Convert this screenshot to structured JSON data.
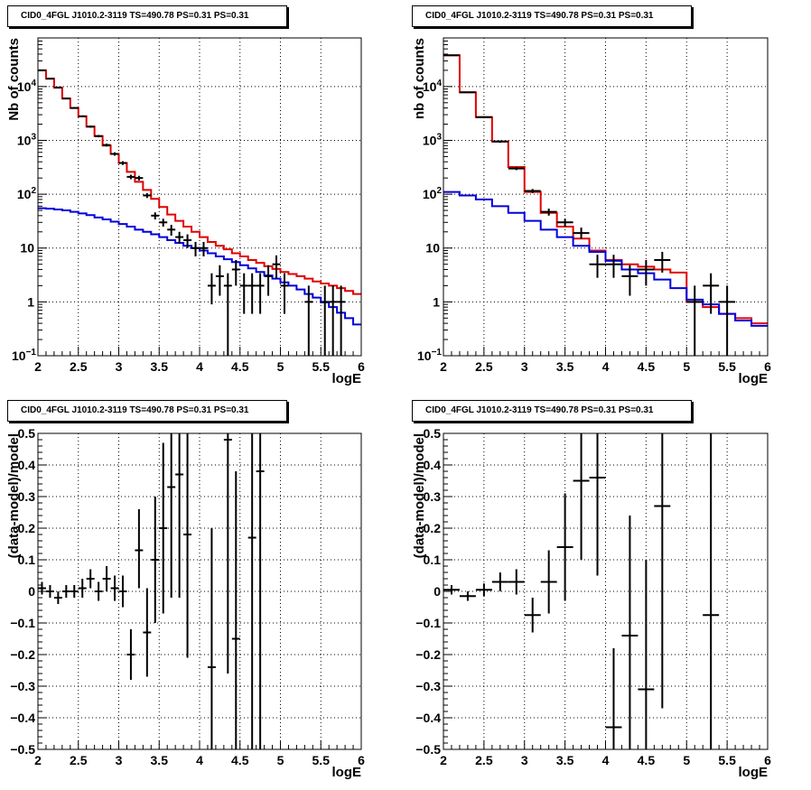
{
  "chart_data": [
    {
      "type": "line",
      "title": "CID0_4FGL J1010.2-3119 TS=490.78 PS=0.31 PS=0.31",
      "xlabel": "logE",
      "ylabel": "Nb of counts",
      "xlim": [
        2,
        6
      ],
      "ylim": [
        0.1,
        80000
      ],
      "yscale": "log",
      "grid": true,
      "xticks": [
        "2",
        "2.5",
        "3",
        "3.5",
        "4",
        "4.5",
        "5",
        "5.5",
        "6"
      ],
      "yticks": [
        {
          "v": 0.1,
          "base": "10",
          "exp": "−1"
        },
        {
          "v": 1,
          "base": "1",
          "exp": ""
        },
        {
          "v": 10,
          "base": "10",
          "exp": ""
        },
        {
          "v": 100,
          "base": "10",
          "exp": "2"
        },
        {
          "v": 1000,
          "base": "10",
          "exp": "3"
        },
        {
          "v": 10000,
          "base": "10",
          "exp": "4"
        }
      ],
      "series": [
        {
          "color": "#e00000",
          "kind": "step",
          "bins": 40,
          "values": [
            20000,
            14000,
            9500,
            6000,
            4000,
            2800,
            1800,
            1200,
            800,
            560,
            380,
            260,
            170,
            120,
            82,
            58,
            42,
            32,
            25,
            20,
            16,
            13,
            11,
            9.5,
            8,
            7,
            6,
            5.3,
            4.6,
            4.1,
            3.6,
            3.3,
            3,
            2.7,
            2.4,
            2.2,
            2,
            1.8,
            1.6,
            1.4
          ]
        },
        {
          "color": "#0000dd",
          "kind": "step",
          "bins": 40,
          "values": [
            55,
            54,
            52,
            50,
            47,
            44,
            41,
            37,
            34,
            31,
            28,
            25,
            22,
            20,
            18,
            16,
            14,
            12.5,
            11,
            10,
            9,
            8,
            7,
            6.2,
            5.5,
            4.8,
            4.2,
            3.6,
            3.1,
            2.7,
            2.3,
            2,
            1.7,
            1.4,
            1.2,
            0.98,
            0.8,
            0.63,
            0.5,
            0.38
          ],
          "tail": {
            "x": [
              5.65,
              5.75,
              5.85,
              5.95,
              6.0
            ],
            "y": [
              0.3,
              0.25,
              0.2,
              0.17,
              0.15
            ]
          }
        },
        {
          "color": "#000000",
          "kind": "errorbar",
          "xhalf": 0.05,
          "points": [
            {
              "x": 2.05,
              "y": 20000,
              "lo": 19700,
              "hi": 20300
            },
            {
              "x": 2.15,
              "y": 14000,
              "lo": 13750,
              "hi": 14250
            },
            {
              "x": 2.25,
              "y": 9600,
              "lo": 9400,
              "hi": 9800
            },
            {
              "x": 2.35,
              "y": 6000,
              "lo": 5850,
              "hi": 6150
            },
            {
              "x": 2.45,
              "y": 4000,
              "lo": 3880,
              "hi": 4120
            },
            {
              "x": 2.55,
              "y": 2800,
              "lo": 2700,
              "hi": 2900
            },
            {
              "x": 2.65,
              "y": 1800,
              "lo": 1720,
              "hi": 1880
            },
            {
              "x": 2.75,
              "y": 1200,
              "lo": 1140,
              "hi": 1260
            },
            {
              "x": 2.85,
              "y": 820,
              "lo": 770,
              "hi": 870
            },
            {
              "x": 2.95,
              "y": 560,
              "lo": 520,
              "hi": 600
            },
            {
              "x": 3.05,
              "y": 380,
              "lo": 350,
              "hi": 410
            },
            {
              "x": 3.15,
              "y": 210,
              "lo": 190,
              "hi": 230
            },
            {
              "x": 3.25,
              "y": 200,
              "lo": 180,
              "hi": 220
            },
            {
              "x": 3.35,
              "y": 95,
              "lo": 85,
              "hi": 105
            },
            {
              "x": 3.45,
              "y": 40,
              "lo": 34,
              "hi": 46
            },
            {
              "x": 3.55,
              "y": 30,
              "lo": 25,
              "hi": 35
            },
            {
              "x": 3.65,
              "y": 22,
              "lo": 17,
              "hi": 27
            },
            {
              "x": 3.75,
              "y": 16,
              "lo": 12,
              "hi": 20
            },
            {
              "x": 3.85,
              "y": 14,
              "lo": 10,
              "hi": 18
            },
            {
              "x": 3.95,
              "y": 10,
              "lo": 7,
              "hi": 13
            },
            {
              "x": 4.05,
              "y": 10,
              "lo": 7,
              "hi": 13
            },
            {
              "x": 4.15,
              "y": 2,
              "lo": 0.9,
              "hi": 3.4
            },
            {
              "x": 4.25,
              "y": 3,
              "lo": 1.3,
              "hi": 4.8
            },
            {
              "x": 4.35,
              "y": 2,
              "lo": 0.1,
              "hi": 3.4
            },
            {
              "x": 4.45,
              "y": 4,
              "lo": 2,
              "hi": 6
            },
            {
              "x": 4.55,
              "y": 2,
              "lo": 0.6,
              "hi": 3.4
            },
            {
              "x": 4.65,
              "y": 2,
              "lo": 0.6,
              "hi": 3.4
            },
            {
              "x": 4.75,
              "y": 2,
              "lo": 0.6,
              "hi": 3.4
            },
            {
              "x": 4.85,
              "y": 3,
              "lo": 1.3,
              "hi": 4.8
            },
            {
              "x": 4.95,
              "y": 5,
              "lo": 2.7,
              "hi": 7.3
            },
            {
              "x": 5.05,
              "y": 2,
              "lo": 0.6,
              "hi": 3.4
            },
            {
              "x": 5.35,
              "y": 1,
              "lo": 0.1,
              "hi": 2
            },
            {
              "x": 5.55,
              "y": 1,
              "lo": 0.1,
              "hi": 2
            },
            {
              "x": 5.65,
              "y": 1,
              "lo": 0.1,
              "hi": 2
            },
            {
              "x": 5.75,
              "y": 1,
              "lo": 0.1,
              "hi": 2
            }
          ]
        }
      ]
    },
    {
      "type": "line",
      "title": "CID0_4FGL J1010.2-3119 TS=490.78 PS=0.31 PS=0.31",
      "xlabel": "logE",
      "ylabel": "nb of counts",
      "xlim": [
        2,
        6
      ],
      "ylim": [
        0.1,
        80000
      ],
      "yscale": "log",
      "grid": true,
      "xticks": [
        "2",
        "2.5",
        "3",
        "3.5",
        "4",
        "4.5",
        "5",
        "5.5",
        "6"
      ],
      "yticks": [
        {
          "v": 0.1,
          "base": "10",
          "exp": "−1"
        },
        {
          "v": 1,
          "base": "1",
          "exp": ""
        },
        {
          "v": 10,
          "base": "10",
          "exp": ""
        },
        {
          "v": 100,
          "base": "10",
          "exp": "2"
        },
        {
          "v": 1000,
          "base": "10",
          "exp": "3"
        },
        {
          "v": 10000,
          "base": "10",
          "exp": "4"
        }
      ],
      "series": [
        {
          "color": "#e00000",
          "kind": "step",
          "bins": 20,
          "values": [
            38000,
            7800,
            2700,
            950,
            320,
            110,
            45,
            25,
            15,
            9,
            6,
            5,
            4.5,
            4,
            3.5,
            1,
            0.8,
            0.6,
            0.5,
            0.4
          ]
        },
        {
          "color": "#0000dd",
          "kind": "step",
          "bins": 20,
          "values": [
            110,
            95,
            80,
            60,
            45,
            32,
            22,
            16,
            11,
            8.5,
            5.8,
            4,
            3.4,
            2.6,
            1.8,
            1.1,
            0.9,
            0.6,
            0.45,
            0.36
          ]
        },
        {
          "color": "#000000",
          "kind": "errorbar",
          "xhalf": 0.1,
          "points": [
            {
              "x": 2.1,
              "y": 38000,
              "lo": 37600,
              "hi": 38400
            },
            {
              "x": 2.3,
              "y": 7800,
              "lo": 7600,
              "hi": 8000
            },
            {
              "x": 2.5,
              "y": 2700,
              "lo": 2600,
              "hi": 2800
            },
            {
              "x": 2.7,
              "y": 950,
              "lo": 900,
              "hi": 1000
            },
            {
              "x": 2.9,
              "y": 300,
              "lo": 280,
              "hi": 320
            },
            {
              "x": 3.1,
              "y": 115,
              "lo": 105,
              "hi": 125
            },
            {
              "x": 3.3,
              "y": 47,
              "lo": 40,
              "hi": 54
            },
            {
              "x": 3.5,
              "y": 30,
              "lo": 25,
              "hi": 35
            },
            {
              "x": 3.7,
              "y": 19,
              "lo": 15,
              "hi": 24
            },
            {
              "x": 3.9,
              "y": 5,
              "lo": 2.8,
              "hi": 7.5
            },
            {
              "x": 4.1,
              "y": 5,
              "lo": 2.8,
              "hi": 7.5
            },
            {
              "x": 4.3,
              "y": 3,
              "lo": 1.3,
              "hi": 4.8
            },
            {
              "x": 4.5,
              "y": 4,
              "lo": 2,
              "hi": 6
            },
            {
              "x": 4.7,
              "y": 6,
              "lo": 3.5,
              "hi": 8.5
            },
            {
              "x": 5.1,
              "y": 1,
              "lo": 0.1,
              "hi": 2
            },
            {
              "x": 5.3,
              "y": 2,
              "lo": 0.6,
              "hi": 3.4
            },
            {
              "x": 5.5,
              "y": 1,
              "lo": 0.1,
              "hi": 2
            }
          ]
        }
      ]
    },
    {
      "type": "scatter",
      "title": "CID0_4FGL J1010.2-3119 TS=490.78 PS=0.31 PS=0.31",
      "xlabel": "logE",
      "ylabel": "(data-model)/model",
      "xlim": [
        2,
        6
      ],
      "ylim": [
        -0.5,
        0.5
      ],
      "yscale": "linear",
      "grid": true,
      "xticks": [
        "2",
        "2.5",
        "3",
        "3.5",
        "4",
        "4.5",
        "5",
        "5.5",
        "6"
      ],
      "ytick_labels": [
        "−0.5",
        "−0.4",
        "−0.3",
        "−0.2",
        "−0.1",
        "0",
        "0.1",
        "0.2",
        "0.3",
        "0.4",
        "0.5"
      ],
      "series": [
        {
          "color": "#000000",
          "kind": "errorbar",
          "xhalf": 0.05,
          "points": [
            {
              "x": 2.05,
              "y": 0.01,
              "lo": -0.01,
              "hi": 0.03
            },
            {
              "x": 2.15,
              "y": 0.0,
              "lo": -0.02,
              "hi": 0.02
            },
            {
              "x": 2.25,
              "y": -0.02,
              "lo": -0.04,
              "hi": 0.0
            },
            {
              "x": 2.35,
              "y": 0.0,
              "lo": -0.02,
              "hi": 0.02
            },
            {
              "x": 2.45,
              "y": 0.0,
              "lo": -0.02,
              "hi": 0.02
            },
            {
              "x": 2.55,
              "y": 0.01,
              "lo": -0.02,
              "hi": 0.04
            },
            {
              "x": 2.65,
              "y": 0.04,
              "lo": 0.01,
              "hi": 0.07
            },
            {
              "x": 2.75,
              "y": 0.0,
              "lo": -0.03,
              "hi": 0.03
            },
            {
              "x": 2.85,
              "y": 0.04,
              "lo": 0.0,
              "hi": 0.08
            },
            {
              "x": 2.95,
              "y": 0.01,
              "lo": -0.03,
              "hi": 0.05
            },
            {
              "x": 3.05,
              "y": 0.0,
              "lo": -0.05,
              "hi": 0.05
            },
            {
              "x": 3.15,
              "y": -0.2,
              "lo": -0.28,
              "hi": -0.12
            },
            {
              "x": 3.25,
              "y": 0.13,
              "lo": 0.01,
              "hi": 0.26
            },
            {
              "x": 3.35,
              "y": -0.13,
              "lo": -0.27,
              "hi": 0.01
            },
            {
              "x": 3.45,
              "y": 0.1,
              "lo": -0.1,
              "hi": 0.3
            },
            {
              "x": 3.55,
              "y": 0.2,
              "lo": -0.07,
              "hi": 0.47
            },
            {
              "x": 3.65,
              "y": 0.33,
              "lo": -0.02,
              "hi": 0.5
            },
            {
              "x": 3.75,
              "y": 0.37,
              "lo": -0.02,
              "hi": 0.5
            },
            {
              "x": 3.85,
              "y": 0.18,
              "lo": -0.21,
              "hi": 0.5
            },
            {
              "x": 4.15,
              "y": -0.24,
              "lo": -0.5,
              "hi": 0.2
            },
            {
              "x": 4.35,
              "y": 0.48,
              "lo": -0.26,
              "hi": 0.5
            },
            {
              "x": 4.45,
              "y": -0.15,
              "lo": -0.5,
              "hi": 0.38
            },
            {
              "x": 4.65,
              "y": 0.17,
              "lo": -0.5,
              "hi": 0.5
            },
            {
              "x": 4.75,
              "y": 0.38,
              "lo": -0.5,
              "hi": 0.5
            }
          ]
        }
      ]
    },
    {
      "type": "scatter",
      "title": "CID0_4FGL J1010.2-3119 TS=490.78 PS=0.31 PS=0.31",
      "xlabel": "logE",
      "ylabel": "(data-model)/model",
      "xlim": [
        2,
        6
      ],
      "ylim": [
        -0.5,
        0.5
      ],
      "yscale": "linear",
      "grid": true,
      "xticks": [
        "2",
        "2.5",
        "3",
        "3.5",
        "4",
        "4.5",
        "5",
        "5.5",
        "6"
      ],
      "ytick_labels": [
        "−0.5",
        "−0.4",
        "−0.3",
        "−0.2",
        "−0.1",
        "0",
        "0.1",
        "0.2",
        "0.3",
        "0.4",
        "0.5"
      ],
      "series": [
        {
          "color": "#000000",
          "kind": "errorbar",
          "xhalf": 0.1,
          "points": [
            {
              "x": 2.1,
              "y": 0.005,
              "lo": -0.01,
              "hi": 0.02
            },
            {
              "x": 2.3,
              "y": -0.015,
              "lo": -0.03,
              "hi": 0.0
            },
            {
              "x": 2.5,
              "y": 0.005,
              "lo": -0.015,
              "hi": 0.025
            },
            {
              "x": 2.7,
              "y": 0.03,
              "lo": 0.0,
              "hi": 0.06
            },
            {
              "x": 2.9,
              "y": 0.03,
              "lo": -0.01,
              "hi": 0.07
            },
            {
              "x": 3.1,
              "y": -0.075,
              "lo": -0.13,
              "hi": -0.02
            },
            {
              "x": 3.3,
              "y": 0.03,
              "lo": -0.07,
              "hi": 0.13
            },
            {
              "x": 3.5,
              "y": 0.14,
              "lo": -0.03,
              "hi": 0.31
            },
            {
              "x": 3.7,
              "y": 0.35,
              "lo": 0.1,
              "hi": 0.5
            },
            {
              "x": 3.9,
              "y": 0.36,
              "lo": 0.05,
              "hi": 0.5
            },
            {
              "x": 4.1,
              "y": -0.43,
              "lo": -0.5,
              "hi": -0.18
            },
            {
              "x": 4.3,
              "y": -0.14,
              "lo": -0.5,
              "hi": 0.24
            },
            {
              "x": 4.5,
              "y": -0.31,
              "lo": -0.5,
              "hi": 0.1
            },
            {
              "x": 4.7,
              "y": 0.27,
              "lo": -0.37,
              "hi": 0.5
            },
            {
              "x": 5.3,
              "y": -0.075,
              "lo": -0.5,
              "hi": 0.5
            }
          ]
        }
      ]
    }
  ]
}
